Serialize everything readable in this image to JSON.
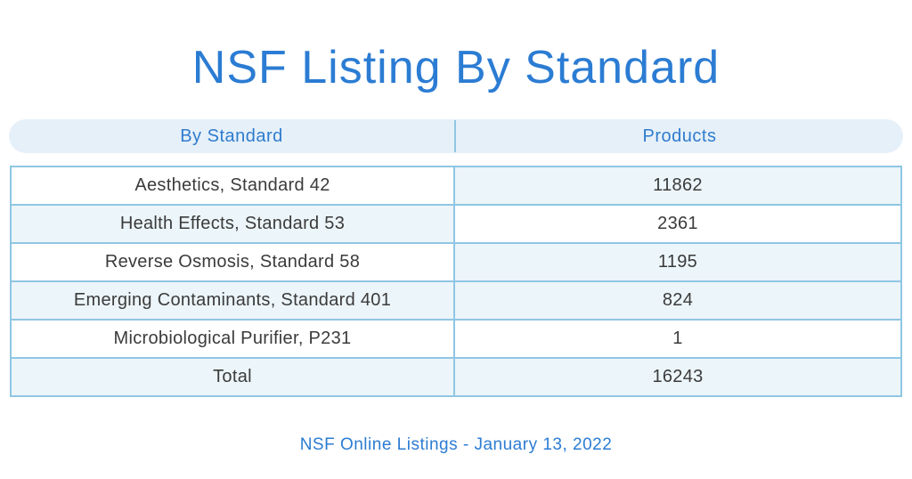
{
  "title": "NSF Listing By Standard",
  "footer": "NSF Online Listings - January 13, 2022",
  "colors": {
    "title_blue": "#2b7cd3",
    "header_bg": "#e6f0f9",
    "header_text": "#2e7ccd",
    "border_blue": "#8fc6e4",
    "cell_blue_bg": "#ecf5f9",
    "cell_text": "#3b3b3b",
    "page_bg": "#ffffff"
  },
  "table": {
    "columns": [
      {
        "label": "By Standard"
      },
      {
        "label": "Products"
      }
    ],
    "rows": [
      {
        "standard": "Aesthetics, Standard 42",
        "products": "11862",
        "shade": [
          "white",
          "blue"
        ]
      },
      {
        "standard": "Health Effects, Standard 53",
        "products": "2361",
        "shade": [
          "blue",
          "white"
        ]
      },
      {
        "standard": "Reverse Osmosis, Standard 58",
        "products": "1195",
        "shade": [
          "white",
          "blue"
        ]
      },
      {
        "standard": "Emerging Contaminants, Standard 401",
        "products": "824",
        "shade": [
          "blue",
          "blue"
        ]
      },
      {
        "standard": "Microbiological Purifier, P231",
        "products": "1",
        "shade": [
          "white",
          "white"
        ]
      },
      {
        "standard": "Total",
        "products": "16243",
        "shade": [
          "blue",
          "blue"
        ]
      }
    ]
  },
  "chart_data": {
    "type": "table",
    "title": "NSF Listing By Standard",
    "columns": [
      "By Standard",
      "Products"
    ],
    "rows": [
      [
        "Aesthetics, Standard 42",
        11862
      ],
      [
        "Health Effects, Standard 53",
        2361
      ],
      [
        "Reverse Osmosis, Standard 58",
        1195
      ],
      [
        "Emerging Contaminants, Standard 401",
        824
      ],
      [
        "Microbiological Purifier, P231",
        1
      ],
      [
        "Total",
        16243
      ]
    ],
    "caption": "NSF Online Listings - January 13, 2022"
  }
}
